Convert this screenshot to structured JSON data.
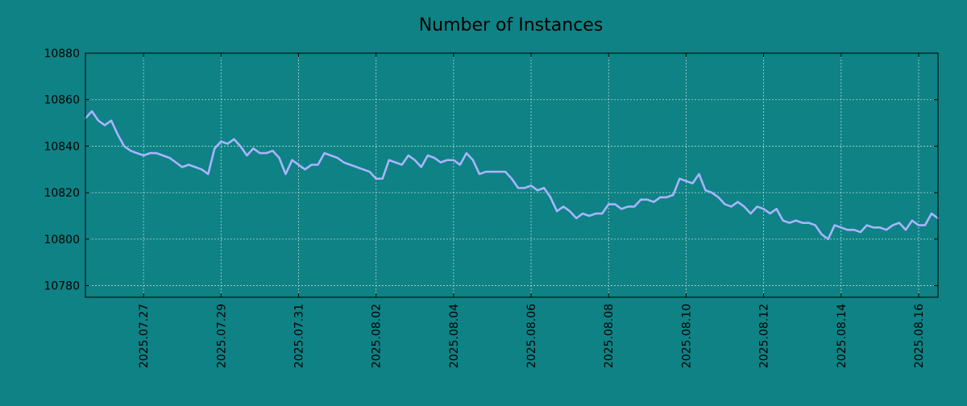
{
  "colors": {
    "background": "#0e8285",
    "line": "#a9b4ff",
    "grid": "#b8d8d8",
    "axis": "#000000"
  },
  "chart_data": {
    "type": "line",
    "title": "Number of Instances",
    "xlabel": "",
    "ylabel": "",
    "xlim": [
      "2025-07-25 12:00",
      "2025-08-16 12:00"
    ],
    "ylim": [
      10775,
      10880
    ],
    "yticks": [
      10780,
      10800,
      10820,
      10840,
      10860,
      10880
    ],
    "xticks": [
      "2025.07.27",
      "2025.07.29",
      "2025.07.31",
      "2025.08.02",
      "2025.08.04",
      "2025.08.06",
      "2025.08.08",
      "2025.08.10",
      "2025.08.12",
      "2025.08.14",
      "2025.08.16"
    ],
    "grid": true,
    "legend": false,
    "series": [
      {
        "x": [
          "2025-07-25 12:00",
          "2025-07-25 16:00",
          "2025-07-25 20:00",
          "2025-07-26 00:00",
          "2025-07-26 04:00",
          "2025-07-26 08:00",
          "2025-07-26 12:00",
          "2025-07-26 16:00",
          "2025-07-26 20:00",
          "2025-07-27 00:00",
          "2025-07-27 04:00",
          "2025-07-27 08:00",
          "2025-07-27 12:00",
          "2025-07-27 16:00",
          "2025-07-27 20:00",
          "2025-07-28 00:00",
          "2025-07-28 04:00",
          "2025-07-28 08:00",
          "2025-07-28 12:00",
          "2025-07-28 16:00",
          "2025-07-28 20:00",
          "2025-07-29 00:00",
          "2025-07-29 04:00",
          "2025-07-29 08:00",
          "2025-07-29 12:00",
          "2025-07-29 16:00",
          "2025-07-29 20:00",
          "2025-07-30 00:00",
          "2025-07-30 04:00",
          "2025-07-30 08:00",
          "2025-07-30 12:00",
          "2025-07-30 16:00",
          "2025-07-30 20:00",
          "2025-07-31 00:00",
          "2025-07-31 04:00",
          "2025-07-31 08:00",
          "2025-07-31 12:00",
          "2025-07-31 16:00",
          "2025-07-31 20:00",
          "2025-08-01 00:00",
          "2025-08-01 04:00",
          "2025-08-01 08:00",
          "2025-08-01 12:00",
          "2025-08-01 16:00",
          "2025-08-01 20:00",
          "2025-08-02 00:00",
          "2025-08-02 04:00",
          "2025-08-02 08:00",
          "2025-08-02 12:00",
          "2025-08-02 16:00",
          "2025-08-02 20:00",
          "2025-08-03 00:00",
          "2025-08-03 04:00",
          "2025-08-03 08:00",
          "2025-08-03 12:00",
          "2025-08-03 16:00",
          "2025-08-03 20:00",
          "2025-08-04 00:00",
          "2025-08-04 04:00",
          "2025-08-04 08:00",
          "2025-08-04 12:00",
          "2025-08-04 16:00",
          "2025-08-04 20:00",
          "2025-08-05 00:00",
          "2025-08-05 04:00",
          "2025-08-05 08:00",
          "2025-08-05 12:00",
          "2025-08-05 16:00",
          "2025-08-05 20:00",
          "2025-08-06 00:00",
          "2025-08-06 04:00",
          "2025-08-06 08:00",
          "2025-08-06 12:00",
          "2025-08-06 16:00",
          "2025-08-06 20:00",
          "2025-08-07 00:00",
          "2025-08-07 04:00",
          "2025-08-07 08:00",
          "2025-08-07 12:00",
          "2025-08-07 16:00",
          "2025-08-07 20:00",
          "2025-08-08 00:00",
          "2025-08-08 04:00",
          "2025-08-08 08:00",
          "2025-08-08 12:00",
          "2025-08-08 16:00",
          "2025-08-08 20:00",
          "2025-08-09 00:00",
          "2025-08-09 04:00",
          "2025-08-09 08:00",
          "2025-08-09 12:00",
          "2025-08-09 16:00",
          "2025-08-09 20:00",
          "2025-08-10 00:00",
          "2025-08-10 04:00",
          "2025-08-10 08:00",
          "2025-08-10 12:00",
          "2025-08-10 16:00",
          "2025-08-10 20:00",
          "2025-08-11 00:00",
          "2025-08-11 04:00",
          "2025-08-11 08:00",
          "2025-08-11 12:00",
          "2025-08-11 16:00",
          "2025-08-11 20:00",
          "2025-08-12 00:00",
          "2025-08-12 04:00",
          "2025-08-12 08:00",
          "2025-08-12 12:00",
          "2025-08-12 16:00",
          "2025-08-12 20:00",
          "2025-08-13 00:00",
          "2025-08-13 04:00",
          "2025-08-13 08:00",
          "2025-08-13 12:00",
          "2025-08-13 16:00",
          "2025-08-13 20:00",
          "2025-08-14 00:00",
          "2025-08-14 04:00",
          "2025-08-14 08:00",
          "2025-08-14 12:00",
          "2025-08-14 16:00",
          "2025-08-14 20:00",
          "2025-08-15 00:00",
          "2025-08-15 04:00",
          "2025-08-15 08:00",
          "2025-08-15 12:00",
          "2025-08-15 16:00",
          "2025-08-15 20:00",
          "2025-08-16 00:00",
          "2025-08-16 04:00",
          "2025-08-16 08:00",
          "2025-08-16 12:00"
        ],
        "values": [
          10852,
          10855,
          10851,
          10849,
          10851,
          10845,
          10840,
          10838,
          10837,
          10836,
          10837,
          10837,
          10836,
          10835,
          10833,
          10831,
          10832,
          10831,
          10830,
          10828,
          10839,
          10842,
          10841,
          10843,
          10840,
          10836,
          10839,
          10837,
          10837,
          10838,
          10835,
          10828,
          10834,
          10832,
          10830,
          10832,
          10832,
          10837,
          10836,
          10835,
          10833,
          10832,
          10831,
          10830,
          10829,
          10826,
          10826,
          10834,
          10833,
          10832,
          10836,
          10834,
          10831,
          10836,
          10835,
          10833,
          10834,
          10834,
          10832,
          10837,
          10834,
          10828,
          10829,
          10829,
          10829,
          10829,
          10826,
          10822,
          10822,
          10823,
          10821,
          10822,
          10818,
          10812,
          10814,
          10812,
          10809,
          10811,
          10810,
          10811,
          10811,
          10815,
          10815,
          10813,
          10814,
          10814,
          10817,
          10817,
          10816,
          10818,
          10818,
          10819,
          10826,
          10825,
          10824,
          10828,
          10821,
          10820,
          10818,
          10815,
          10814,
          10816,
          10814,
          10811,
          10814,
          10813,
          10811,
          10813,
          10808,
          10807,
          10808,
          10807,
          10807,
          10806,
          10802,
          10800,
          10806,
          10805,
          10804,
          10804,
          10803,
          10806,
          10805,
          10805,
          10804,
          10806,
          10807,
          10804,
          10808,
          10806,
          10806,
          10811,
          10809
        ]
      }
    ]
  }
}
